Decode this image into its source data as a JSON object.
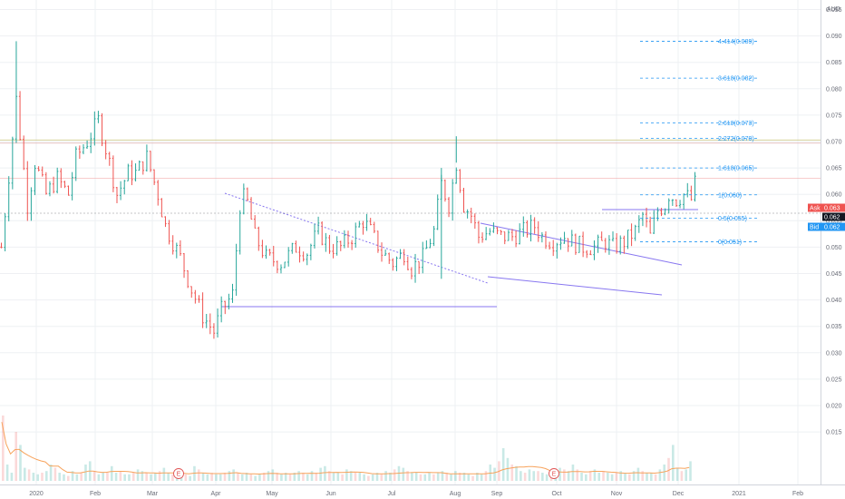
{
  "chart_data": {
    "type": "ohlc",
    "currency": "AUD",
    "y_ticks": [
      "0.095",
      "0.090",
      "0.085",
      "0.080",
      "0.075",
      "0.070",
      "0.065",
      "0.060",
      "0.055",
      "0.050",
      "0.045",
      "0.040",
      "0.035",
      "0.030",
      "0.025",
      "0.020",
      "0.015"
    ],
    "x_labels": [
      "2020",
      "Feb",
      "Mar",
      "Apr",
      "May",
      "Jun",
      "Jul",
      "Aug",
      "Sep",
      "Oct",
      "Nov",
      "Dec",
      "2021",
      "Feb"
    ],
    "ylim": [
      0.0125,
      0.0975
    ],
    "grid": true,
    "fib_levels": [
      {
        "label": "4.414(0.089)",
        "value": 0.089
      },
      {
        "label": "3.618(0.082)",
        "value": 0.082
      },
      {
        "label": "2.618(0.073)",
        "value": 0.0735
      },
      {
        "label": "2.272(0.070)",
        "value": 0.0706
      },
      {
        "label": "1.618(0.065)",
        "value": 0.065
      },
      {
        "label": "1(0.060)",
        "value": 0.0599
      },
      {
        "label": "0.5(0.055)",
        "value": 0.0555
      },
      {
        "label": "0(0.051)",
        "value": 0.051
      }
    ],
    "price_tags": [
      {
        "label": "Ask",
        "value": "0.063",
        "color": "#ef5350"
      },
      {
        "label": "",
        "value": "0.062",
        "color": "#131722"
      },
      {
        "label": "Bid",
        "value": "0.062",
        "color": "#2196f3"
      }
    ],
    "event_markers": [
      "E",
      "E"
    ],
    "price_path": [
      [
        0,
        0.05
      ],
      [
        3,
        0.06
      ],
      [
        8,
        0.078
      ],
      [
        14,
        0.058
      ],
      [
        18,
        0.066
      ],
      [
        24,
        0.06
      ],
      [
        30,
        0.063
      ],
      [
        36,
        0.06
      ],
      [
        40,
        0.067
      ],
      [
        46,
        0.07
      ],
      [
        52,
        0.074
      ],
      [
        58,
        0.066
      ],
      [
        62,
        0.06
      ],
      [
        68,
        0.064
      ],
      [
        72,
        0.064
      ],
      [
        78,
        0.067
      ],
      [
        84,
        0.06
      ],
      [
        88,
        0.054
      ],
      [
        96,
        0.048
      ],
      [
        102,
        0.042
      ],
      [
        108,
        0.037
      ],
      [
        114,
        0.034
      ],
      [
        118,
        0.038
      ],
      [
        124,
        0.041
      ],
      [
        128,
        0.058
      ],
      [
        131,
        0.06
      ],
      [
        136,
        0.052
      ],
      [
        142,
        0.048
      ],
      [
        150,
        0.047
      ],
      [
        158,
        0.05
      ],
      [
        164,
        0.049
      ],
      [
        170,
        0.053
      ],
      [
        176,
        0.05
      ],
      [
        182,
        0.05
      ],
      [
        188,
        0.052
      ],
      [
        194,
        0.055
      ],
      [
        198,
        0.053
      ],
      [
        204,
        0.049
      ],
      [
        210,
        0.047
      ],
      [
        216,
        0.049
      ],
      [
        220,
        0.046
      ],
      [
        226,
        0.048
      ],
      [
        232,
        0.053
      ],
      [
        236,
        0.062
      ],
      [
        240,
        0.058
      ],
      [
        244,
        0.066
      ],
      [
        248,
        0.058
      ],
      [
        252,
        0.056
      ],
      [
        256,
        0.052
      ],
      [
        262,
        0.053
      ],
      [
        268,
        0.052
      ],
      [
        274,
        0.052
      ],
      [
        280,
        0.053
      ],
      [
        286,
        0.054
      ],
      [
        290,
        0.052
      ],
      [
        296,
        0.051
      ],
      [
        302,
        0.052
      ],
      [
        306,
        0.051
      ],
      [
        312,
        0.05
      ],
      [
        318,
        0.05
      ],
      [
        324,
        0.051
      ],
      [
        328,
        0.05
      ],
      [
        334,
        0.051
      ],
      [
        340,
        0.053
      ],
      [
        344,
        0.056
      ],
      [
        348,
        0.052
      ],
      [
        352,
        0.057
      ],
      [
        356,
        0.058
      ],
      [
        358,
        0.06
      ],
      [
        362,
        0.059
      ],
      [
        366,
        0.06
      ],
      [
        370,
        0.059
      ],
      [
        372,
        0.062
      ]
    ],
    "volume_heights": [
      0.4,
      0.1,
      0.05,
      0.3,
      0.22,
      0.08,
      0.07,
      0.05,
      0.04,
      0.05,
      0.06,
      0.1,
      0.08,
      0.05,
      0.04,
      0.03,
      0.06,
      0.04,
      0.05,
      0.1,
      0.12,
      0.06,
      0.04,
      0.05,
      0.05,
      0.09,
      0.05,
      0.06,
      0.04,
      0.04,
      0.05,
      0.07,
      0.06,
      0.05,
      0.04,
      0.05,
      0.06,
      0.08,
      0.05,
      0.04,
      0.04,
      0.05,
      0.04,
      0.03,
      0.09,
      0.07,
      0.05,
      0.04,
      0.05,
      0.04,
      0.04,
      0.05,
      0.06,
      0.07,
      0.05,
      0.04,
      0.05,
      0.04,
      0.03,
      0.04,
      0.05,
      0.06,
      0.07,
      0.05,
      0.04,
      0.05,
      0.04,
      0.05,
      0.06,
      0.05,
      0.04,
      0.06,
      0.05,
      0.08,
      0.09,
      0.06,
      0.05,
      0.05,
      0.04,
      0.07,
      0.06,
      0.05,
      0.05,
      0.04,
      0.03,
      0.04,
      0.05,
      0.04,
      0.06,
      0.05,
      0.07,
      0.09,
      0.08,
      0.06,
      0.05,
      0.05,
      0.04,
      0.04,
      0.05,
      0.04,
      0.05,
      0.06,
      0.05,
      0.04,
      0.06,
      0.05,
      0.05,
      0.04,
      0.03,
      0.05,
      0.04,
      0.06,
      0.1,
      0.08,
      0.12,
      0.2,
      0.14,
      0.1,
      0.09,
      0.06,
      0.05,
      0.07,
      0.06,
      0.06,
      0.05,
      0.04,
      0.05,
      0.06,
      0.08,
      0.07,
      0.06,
      0.1,
      0.07,
      0.05,
      0.04,
      0.06,
      0.07,
      0.05,
      0.06,
      0.05,
      0.04,
      0.05,
      0.06,
      0.05,
      0.04,
      0.06,
      0.08,
      0.06,
      0.05,
      0.05,
      0.04,
      0.07,
      0.1,
      0.14,
      0.22,
      0.08,
      0.06,
      0.07,
      0.12
    ]
  }
}
